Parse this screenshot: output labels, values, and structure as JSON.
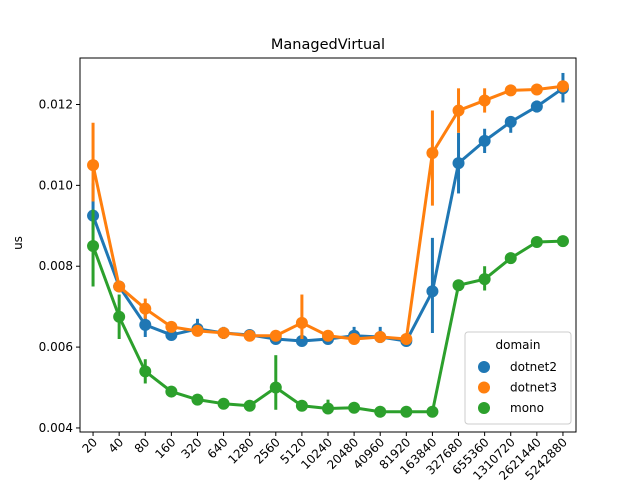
{
  "chart_data": {
    "type": "line",
    "title": "ManagedVirtual",
    "xlabel": "",
    "ylabel": "us",
    "categories": [
      "20",
      "40",
      "80",
      "160",
      "320",
      "640",
      "1280",
      "2560",
      "5120",
      "10240",
      "20480",
      "40960",
      "81920",
      "163840",
      "327680",
      "655360",
      "1310720",
      "2621440",
      "5242880"
    ],
    "ylim": [
      0.0039,
      0.01315
    ],
    "yticks": [
      0.004,
      0.006,
      0.008,
      0.01,
      0.012
    ],
    "ytick_labels": [
      "0.004",
      "0.006",
      "0.008",
      "0.010",
      "0.012"
    ],
    "legend": {
      "title": "domain",
      "placement": "lower-right"
    },
    "grid": false,
    "series": [
      {
        "name": "dotnet2",
        "color": "#1f77b4",
        "values": [
          0.00925,
          0.0075,
          0.00655,
          0.0063,
          0.00645,
          0.00635,
          0.0063,
          0.0062,
          0.00615,
          0.0062,
          0.00628,
          0.00625,
          0.00615,
          0.00738,
          0.01055,
          0.0111,
          0.01157,
          0.01195,
          0.0124
        ],
        "err_low": [
          0.0089,
          0.0074,
          0.00625,
          0.0062,
          0.0063,
          0.0062,
          0.0062,
          0.0061,
          0.0061,
          0.0061,
          0.0061,
          0.0061,
          0.0061,
          0.00635,
          0.0098,
          0.0108,
          0.0113,
          0.0118,
          0.01205
        ],
        "err_high": [
          0.01005,
          0.0076,
          0.00685,
          0.0064,
          0.0067,
          0.0065,
          0.0064,
          0.0063,
          0.0062,
          0.0063,
          0.0065,
          0.0065,
          0.0062,
          0.0087,
          0.0113,
          0.0114,
          0.0117,
          0.0121,
          0.01278
        ]
      },
      {
        "name": "dotnet3",
        "color": "#ff7f0e",
        "values": [
          0.0105,
          0.0075,
          0.00695,
          0.0065,
          0.0064,
          0.00635,
          0.00628,
          0.00628,
          0.0066,
          0.00628,
          0.0062,
          0.00625,
          0.0062,
          0.0108,
          0.01185,
          0.0121,
          0.01235,
          0.01237,
          0.01245
        ],
        "err_low": [
          0.0096,
          0.0074,
          0.0067,
          0.0064,
          0.0063,
          0.0063,
          0.0062,
          0.0062,
          0.0062,
          0.0062,
          0.0061,
          0.0062,
          0.0061,
          0.0095,
          0.0113,
          0.0118,
          0.0123,
          0.0123,
          0.0123
        ],
        "err_high": [
          0.01155,
          0.0076,
          0.0072,
          0.0066,
          0.0065,
          0.0064,
          0.0063,
          0.0063,
          0.0073,
          0.0063,
          0.0063,
          0.0063,
          0.0063,
          0.01185,
          0.0124,
          0.0124,
          0.0124,
          0.0124,
          0.0125
        ]
      },
      {
        "name": "mono",
        "color": "#2ca02c",
        "values": [
          0.0085,
          0.00675,
          0.0054,
          0.0049,
          0.0047,
          0.0046,
          0.00455,
          0.005,
          0.00455,
          0.00448,
          0.0045,
          0.0044,
          0.0044,
          0.0044,
          0.00753,
          0.00768,
          0.0082,
          0.0086,
          0.00862
        ],
        "err_low": [
          0.0075,
          0.0062,
          0.0051,
          0.0048,
          0.0046,
          0.0045,
          0.0045,
          0.00445,
          0.0045,
          0.0044,
          0.0044,
          0.0044,
          0.0044,
          0.0044,
          0.0075,
          0.0074,
          0.0081,
          0.0086,
          0.0086
        ],
        "err_high": [
          0.0094,
          0.0073,
          0.0057,
          0.005,
          0.0048,
          0.0047,
          0.0046,
          0.0058,
          0.0046,
          0.0047,
          0.0046,
          0.0045,
          0.0044,
          0.0045,
          0.0076,
          0.008,
          0.0083,
          0.0087,
          0.0087
        ]
      }
    ]
  }
}
